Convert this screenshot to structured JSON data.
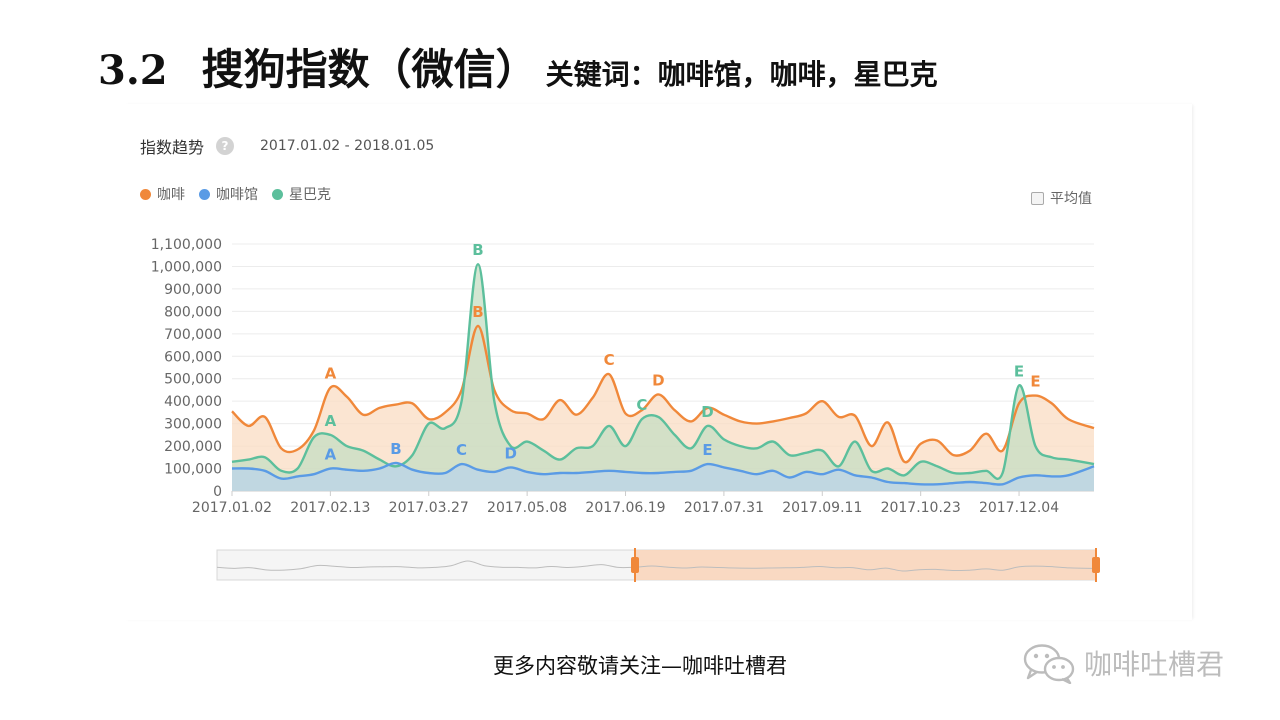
{
  "slide": {
    "number": "3.2",
    "title": "搜狗指数（微信）",
    "keywords": "关键词：咖啡馆，咖啡，星巴克"
  },
  "panel": {
    "title": "指数趋势",
    "help_icon": "question-mark-icon",
    "help_glyph": "?",
    "date_range": "2017.01.02 - 2018.01.05",
    "avg_label": "平均值"
  },
  "footer": {
    "text": "更多内容敬请关注—咖啡吐槽君",
    "brand": "咖啡吐槽君",
    "brand_icon": "wechat-icon"
  },
  "chart_data": {
    "type": "area",
    "legend": "top-left",
    "grid": true,
    "ylim": [
      0,
      1100000
    ],
    "y_ticks": [
      "0",
      "100,000",
      "200,000",
      "300,000",
      "400,000",
      "500,000",
      "600,000",
      "700,000",
      "800,000",
      "900,000",
      "1,000,000",
      "1,100,000"
    ],
    "x_ticks": [
      "2017.01.02",
      "2017.02.13",
      "2017.03.27",
      "2017.05.08",
      "2017.06.19",
      "2017.07.31",
      "2017.09.11",
      "2017.10.23",
      "2017.12.04"
    ],
    "x_start": "2017.01.02",
    "x_end": "2018.01.05",
    "series": [
      {
        "name": "咖啡",
        "color": "#f0883a",
        "fill": "#f9dcc3",
        "points": [
          [
            "2017.01.02",
            355000
          ],
          [
            "2017.01.09",
            290000
          ],
          [
            "2017.01.16",
            330000
          ],
          [
            "2017.01.23",
            190000
          ],
          [
            "2017.01.30",
            185000
          ],
          [
            "2017.02.06",
            270000
          ],
          [
            "2017.02.13",
            460000
          ],
          [
            "2017.02.20",
            420000
          ],
          [
            "2017.02.27",
            340000
          ],
          [
            "2017.03.06",
            370000
          ],
          [
            "2017.03.13",
            385000
          ],
          [
            "2017.03.20",
            390000
          ],
          [
            "2017.03.27",
            320000
          ],
          [
            "2017.04.03",
            350000
          ],
          [
            "2017.04.10",
            450000
          ],
          [
            "2017.04.17",
            735000
          ],
          [
            "2017.04.24",
            450000
          ],
          [
            "2017.05.01",
            360000
          ],
          [
            "2017.05.08",
            345000
          ],
          [
            "2017.05.15",
            320000
          ],
          [
            "2017.05.22",
            405000
          ],
          [
            "2017.05.29",
            340000
          ],
          [
            "2017.06.05",
            415000
          ],
          [
            "2017.06.12",
            520000
          ],
          [
            "2017.06.19",
            345000
          ],
          [
            "2017.06.26",
            360000
          ],
          [
            "2017.07.03",
            430000
          ],
          [
            "2017.07.10",
            360000
          ],
          [
            "2017.07.17",
            310000
          ],
          [
            "2017.07.24",
            370000
          ],
          [
            "2017.07.31",
            340000
          ],
          [
            "2017.08.07",
            310000
          ],
          [
            "2017.08.14",
            300000
          ],
          [
            "2017.08.21",
            310000
          ],
          [
            "2017.08.28",
            325000
          ],
          [
            "2017.09.04",
            345000
          ],
          [
            "2017.09.11",
            400000
          ],
          [
            "2017.09.18",
            330000
          ],
          [
            "2017.09.25",
            335000
          ],
          [
            "2017.10.02",
            200000
          ],
          [
            "2017.10.09",
            305000
          ],
          [
            "2017.10.16",
            130000
          ],
          [
            "2017.10.23",
            210000
          ],
          [
            "2017.10.30",
            225000
          ],
          [
            "2017.11.06",
            160000
          ],
          [
            "2017.11.13",
            180000
          ],
          [
            "2017.11.20",
            255000
          ],
          [
            "2017.11.27",
            180000
          ],
          [
            "2017.12.04",
            390000
          ],
          [
            "2017.12.11",
            425000
          ],
          [
            "2017.12.18",
            390000
          ],
          [
            "2017.12.25",
            320000
          ],
          [
            "2018.01.05",
            280000
          ]
        ]
      },
      {
        "name": "咖啡馆",
        "color": "#5a9be5",
        "fill": "#b9d4ea",
        "points": [
          [
            "2017.01.02",
            100000
          ],
          [
            "2017.01.09",
            100000
          ],
          [
            "2017.01.16",
            90000
          ],
          [
            "2017.01.23",
            55000
          ],
          [
            "2017.01.30",
            65000
          ],
          [
            "2017.02.06",
            75000
          ],
          [
            "2017.02.13",
            100000
          ],
          [
            "2017.02.20",
            95000
          ],
          [
            "2017.02.27",
            90000
          ],
          [
            "2017.03.06",
            100000
          ],
          [
            "2017.03.13",
            125000
          ],
          [
            "2017.03.20",
            95000
          ],
          [
            "2017.03.27",
            80000
          ],
          [
            "2017.04.03",
            80000
          ],
          [
            "2017.04.10",
            120000
          ],
          [
            "2017.04.17",
            95000
          ],
          [
            "2017.04.24",
            85000
          ],
          [
            "2017.05.01",
            105000
          ],
          [
            "2017.05.08",
            85000
          ],
          [
            "2017.05.15",
            75000
          ],
          [
            "2017.05.22",
            80000
          ],
          [
            "2017.05.29",
            80000
          ],
          [
            "2017.06.05",
            85000
          ],
          [
            "2017.06.12",
            90000
          ],
          [
            "2017.06.19",
            85000
          ],
          [
            "2017.06.26",
            80000
          ],
          [
            "2017.07.03",
            80000
          ],
          [
            "2017.07.10",
            85000
          ],
          [
            "2017.07.17",
            90000
          ],
          [
            "2017.07.24",
            120000
          ],
          [
            "2017.07.31",
            105000
          ],
          [
            "2017.08.07",
            90000
          ],
          [
            "2017.08.14",
            75000
          ],
          [
            "2017.08.21",
            90000
          ],
          [
            "2017.08.28",
            60000
          ],
          [
            "2017.09.04",
            85000
          ],
          [
            "2017.09.11",
            75000
          ],
          [
            "2017.09.18",
            95000
          ],
          [
            "2017.09.25",
            70000
          ],
          [
            "2017.10.02",
            60000
          ],
          [
            "2017.10.09",
            40000
          ],
          [
            "2017.10.16",
            35000
          ],
          [
            "2017.10.23",
            30000
          ],
          [
            "2017.10.30",
            30000
          ],
          [
            "2017.11.06",
            35000
          ],
          [
            "2017.11.13",
            40000
          ],
          [
            "2017.11.20",
            35000
          ],
          [
            "2017.11.27",
            30000
          ],
          [
            "2017.12.04",
            60000
          ],
          [
            "2017.12.11",
            70000
          ],
          [
            "2017.12.18",
            65000
          ],
          [
            "2017.12.25",
            70000
          ],
          [
            "2018.01.05",
            110000
          ]
        ]
      },
      {
        "name": "星巴克",
        "color": "#5cbf9c",
        "fill": "#c5ddc3",
        "points": [
          [
            "2017.01.02",
            130000
          ],
          [
            "2017.01.09",
            140000
          ],
          [
            "2017.01.16",
            150000
          ],
          [
            "2017.01.23",
            90000
          ],
          [
            "2017.01.30",
            100000
          ],
          [
            "2017.02.06",
            240000
          ],
          [
            "2017.02.13",
            250000
          ],
          [
            "2017.02.20",
            200000
          ],
          [
            "2017.02.27",
            180000
          ],
          [
            "2017.03.06",
            140000
          ],
          [
            "2017.03.13",
            110000
          ],
          [
            "2017.03.20",
            160000
          ],
          [
            "2017.03.27",
            300000
          ],
          [
            "2017.04.03",
            280000
          ],
          [
            "2017.04.10",
            400000
          ],
          [
            "2017.04.17",
            1010000
          ],
          [
            "2017.04.24",
            400000
          ],
          [
            "2017.05.01",
            200000
          ],
          [
            "2017.05.08",
            220000
          ],
          [
            "2017.05.15",
            180000
          ],
          [
            "2017.05.22",
            140000
          ],
          [
            "2017.05.29",
            190000
          ],
          [
            "2017.06.05",
            200000
          ],
          [
            "2017.06.12",
            290000
          ],
          [
            "2017.06.19",
            200000
          ],
          [
            "2017.06.26",
            320000
          ],
          [
            "2017.07.03",
            330000
          ],
          [
            "2017.07.10",
            250000
          ],
          [
            "2017.07.17",
            190000
          ],
          [
            "2017.07.24",
            290000
          ],
          [
            "2017.07.31",
            230000
          ],
          [
            "2017.08.07",
            200000
          ],
          [
            "2017.08.14",
            190000
          ],
          [
            "2017.08.21",
            220000
          ],
          [
            "2017.08.28",
            160000
          ],
          [
            "2017.09.04",
            170000
          ],
          [
            "2017.09.11",
            180000
          ],
          [
            "2017.09.18",
            110000
          ],
          [
            "2017.09.25",
            220000
          ],
          [
            "2017.10.02",
            90000
          ],
          [
            "2017.10.09",
            100000
          ],
          [
            "2017.10.16",
            70000
          ],
          [
            "2017.10.23",
            130000
          ],
          [
            "2017.10.30",
            110000
          ],
          [
            "2017.11.06",
            80000
          ],
          [
            "2017.11.13",
            80000
          ],
          [
            "2017.11.20",
            90000
          ],
          [
            "2017.11.27",
            80000
          ],
          [
            "2017.12.04",
            470000
          ],
          [
            "2017.12.11",
            200000
          ],
          [
            "2017.12.18",
            150000
          ],
          [
            "2017.12.25",
            140000
          ],
          [
            "2018.01.05",
            120000
          ]
        ]
      }
    ],
    "annotations": [
      {
        "label": "A",
        "series": "咖啡",
        "x": "2017.02.13",
        "y": 460000
      },
      {
        "label": "A",
        "series": "星巴克",
        "x": "2017.02.13",
        "y": 250000
      },
      {
        "label": "A",
        "series": "咖啡馆",
        "x": "2017.02.13",
        "y": 100000
      },
      {
        "label": "B",
        "series": "星巴克",
        "x": "2017.04.17",
        "y": 1010000
      },
      {
        "label": "B",
        "series": "咖啡",
        "x": "2017.04.17",
        "y": 735000
      },
      {
        "label": "B",
        "series": "咖啡馆",
        "x": "2017.03.13",
        "y": 125000
      },
      {
        "label": "C",
        "series": "咖啡",
        "x": "2017.06.12",
        "y": 520000
      },
      {
        "label": "C",
        "series": "星巴克",
        "x": "2017.06.26",
        "y": 320000
      },
      {
        "label": "C",
        "series": "咖啡馆",
        "x": "2017.04.10",
        "y": 120000
      },
      {
        "label": "D",
        "series": "咖啡",
        "x": "2017.07.03",
        "y": 430000
      },
      {
        "label": "D",
        "series": "星巴克",
        "x": "2017.07.24",
        "y": 290000
      },
      {
        "label": "D",
        "series": "咖啡馆",
        "x": "2017.05.01",
        "y": 105000
      },
      {
        "label": "E",
        "series": "星巴克",
        "x": "2017.12.04",
        "y": 470000
      },
      {
        "label": "E",
        "series": "咖啡",
        "x": "2017.12.11",
        "y": 425000
      },
      {
        "label": "E",
        "series": "咖啡馆",
        "x": "2017.07.24",
        "y": 120000
      }
    ],
    "range_selector": {
      "start": "2017.06.26",
      "end": "2018.01.05",
      "selected_color": "#f9d6bd",
      "handle_color": "#f0883a"
    }
  }
}
